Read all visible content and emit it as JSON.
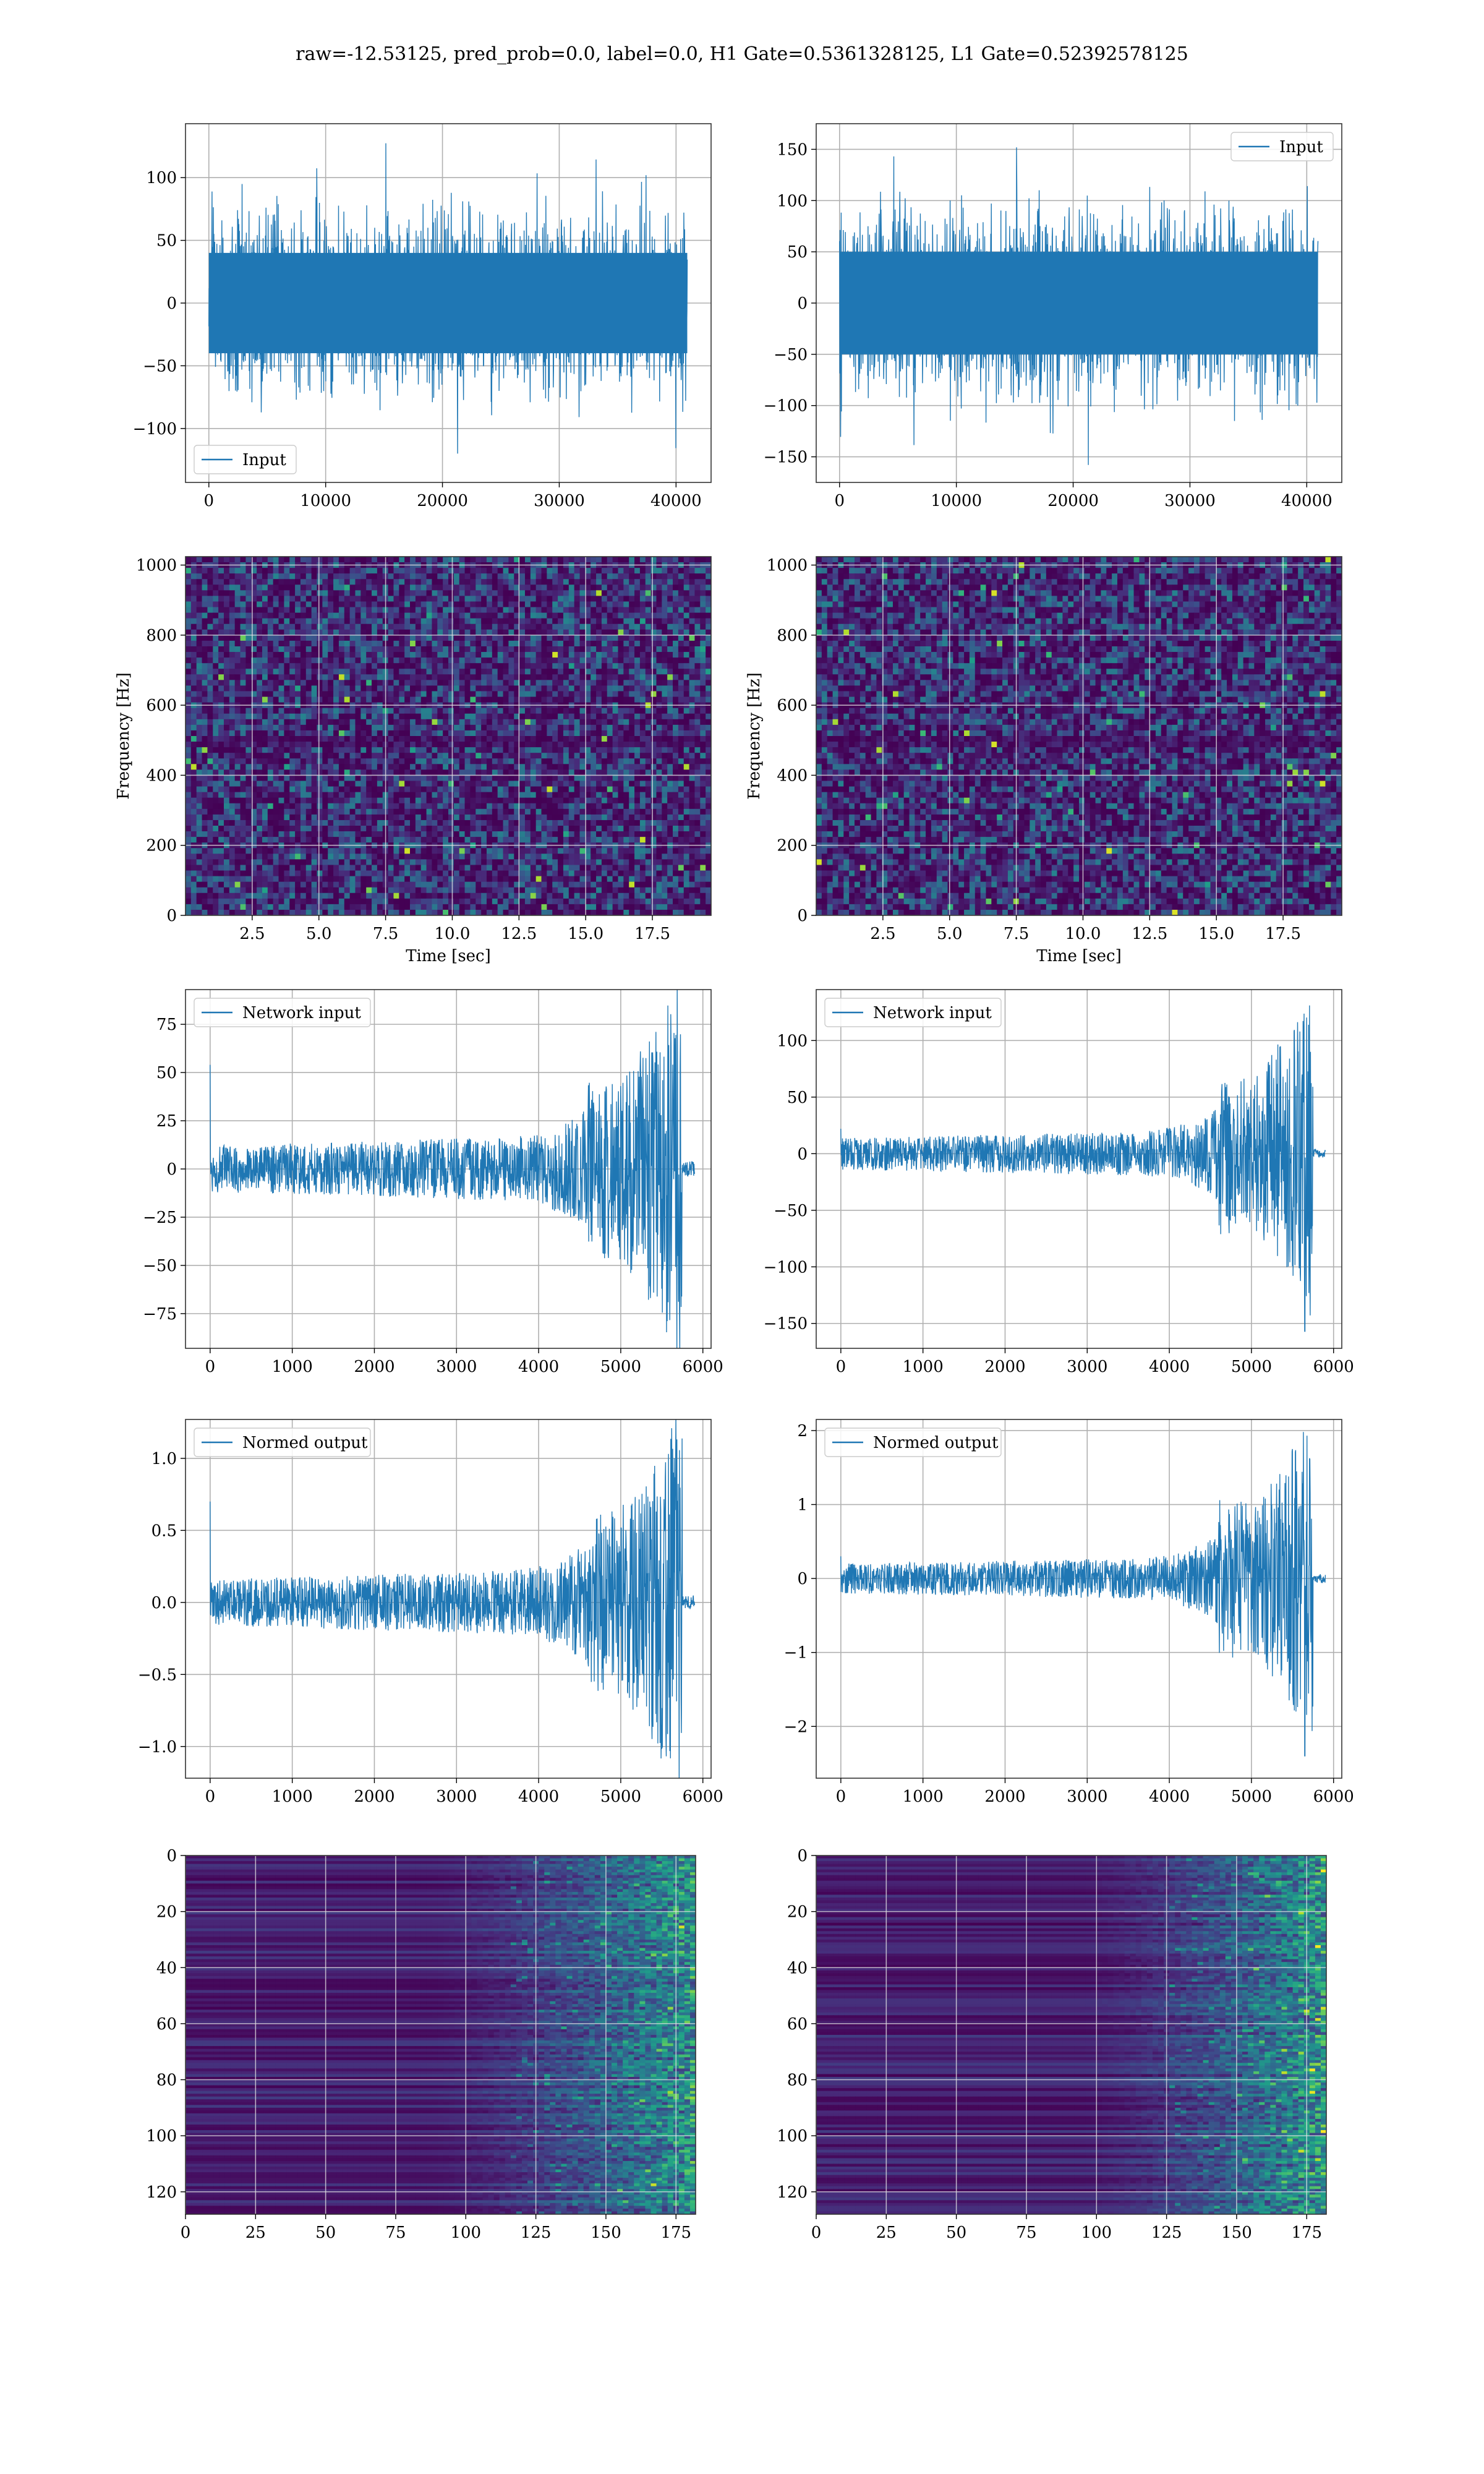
{
  "figure": {
    "title": "raw=-12.53125, pred_prob=0.0, label=0.0, H1 Gate=0.5361328125, L1 Gate=0.52392578125"
  },
  "colors": {
    "line": "#1f77b4",
    "grid": "#b0b0b0",
    "viridis": [
      "#440154",
      "#482878",
      "#3e4989",
      "#31688e",
      "#26828e",
      "#1f9e89",
      "#35b779",
      "#6ece58",
      "#b5de2b",
      "#fde725"
    ]
  },
  "chart_data": [
    {
      "id": "h1-input",
      "type": "line",
      "col": 0,
      "row": 0,
      "title": "",
      "xlabel": "",
      "ylabel": "",
      "series": [
        {
          "name": "Input"
        }
      ],
      "legend": "lower-left",
      "xlim": [
        -2000,
        43000
      ],
      "ylim": [
        -143,
        143
      ],
      "xticks": [
        0,
        10000,
        20000,
        30000,
        40000
      ],
      "yticks": [
        -100,
        -50,
        0,
        50,
        100
      ],
      "ticklabels_y": [
        "−100",
        "−50",
        "0",
        "50",
        "100"
      ],
      "grid": true,
      "signal": {
        "kind": "noise",
        "x_start": 0,
        "x_end": 40960,
        "n": 1800,
        "amp_core": 40,
        "amp_peak": 128,
        "extremes": [
          -120,
          130
        ]
      }
    },
    {
      "id": "l1-input",
      "type": "line",
      "col": 1,
      "row": 0,
      "title": "",
      "xlabel": "",
      "ylabel": "",
      "series": [
        {
          "name": "Input"
        }
      ],
      "legend": "upper-right",
      "xlim": [
        -2000,
        43000
      ],
      "ylim": [
        -175,
        175
      ],
      "xticks": [
        0,
        10000,
        20000,
        30000,
        40000
      ],
      "yticks": [
        -150,
        -100,
        -50,
        0,
        50,
        100,
        150
      ],
      "ticklabels_y": [
        "−150",
        "−100",
        "−50",
        "0",
        "50",
        "100",
        "150"
      ],
      "grid": true,
      "signal": {
        "kind": "noise",
        "x_start": 0,
        "x_end": 40960,
        "n": 1800,
        "amp_core": 50,
        "amp_peak": 155,
        "extremes": [
          -158,
          155
        ]
      }
    },
    {
      "id": "h1-spectrogram",
      "type": "heatmap",
      "col": 0,
      "row": 1,
      "title": "",
      "xlabel": "Time [sec]",
      "ylabel": "Frequency [Hz]",
      "xlim": [
        0,
        19.7
      ],
      "ylim": [
        0,
        1024
      ],
      "xticks": [
        2.5,
        5.0,
        7.5,
        10.0,
        12.5,
        15.0,
        17.5
      ],
      "ticklabels_x": [
        "2.5",
        "5.0",
        "7.5",
        "10.0",
        "12.5",
        "15.0",
        "17.5"
      ],
      "yticks": [
        0,
        200,
        400,
        600,
        800,
        1000
      ],
      "grid": true,
      "cells": {
        "nx": 96,
        "ny": 64,
        "dark_band_hz": 500,
        "seed": 11
      }
    },
    {
      "id": "l1-spectrogram",
      "type": "heatmap",
      "col": 1,
      "row": 1,
      "title": "",
      "xlabel": "Time [sec]",
      "ylabel": "Frequency [Hz]",
      "xlim": [
        0,
        19.7
      ],
      "ylim": [
        0,
        1024
      ],
      "xticks": [
        2.5,
        5.0,
        7.5,
        10.0,
        12.5,
        15.0,
        17.5
      ],
      "ticklabels_x": [
        "2.5",
        "5.0",
        "7.5",
        "10.0",
        "12.5",
        "15.0",
        "17.5"
      ],
      "yticks": [
        0,
        200,
        400,
        600,
        800,
        1000
      ],
      "grid": true,
      "cells": {
        "nx": 96,
        "ny": 64,
        "dark_band_hz": 500,
        "seed": 29
      }
    },
    {
      "id": "h1-network-input",
      "type": "line",
      "col": 0,
      "row": 2,
      "title": "",
      "xlabel": "",
      "ylabel": "",
      "series": [
        {
          "name": "Network input"
        }
      ],
      "legend": "upper-left",
      "xlim": [
        -300,
        6100
      ],
      "ylim": [
        -93,
        93
      ],
      "xticks": [
        0,
        1000,
        2000,
        3000,
        4000,
        5000,
        6000
      ],
      "yticks": [
        -75,
        -50,
        -25,
        0,
        25,
        50,
        75
      ],
      "ticklabels_y": [
        "−75",
        "−50",
        "−25",
        "0",
        "25",
        "50",
        "75"
      ],
      "grid": true,
      "signal": {
        "kind": "chirp",
        "x_start": 0,
        "x_end": 5900,
        "merger": 5750,
        "n": 1500,
        "base_amp": 12,
        "peak_amp": 85,
        "spike_start": 54,
        "tail_amp": 4
      }
    },
    {
      "id": "l1-network-input",
      "type": "line",
      "col": 1,
      "row": 2,
      "title": "",
      "xlabel": "",
      "ylabel": "",
      "series": [
        {
          "name": "Network input"
        }
      ],
      "legend": "upper-left",
      "xlim": [
        -300,
        6100
      ],
      "ylim": [
        -172,
        145
      ],
      "xticks": [
        0,
        1000,
        2000,
        3000,
        4000,
        5000,
        6000
      ],
      "yticks": [
        -150,
        -100,
        -50,
        0,
        50,
        100
      ],
      "ticklabels_y": [
        "−150",
        "−100",
        "−50",
        "0",
        "50",
        "100"
      ],
      "grid": true,
      "signal": {
        "kind": "chirp",
        "x_start": 0,
        "x_end": 5900,
        "merger": 5750,
        "n": 1500,
        "base_amp": 14,
        "peak_amp": 130,
        "spike_start": 22,
        "tail_amp": 4,
        "min_spike": -157
      }
    },
    {
      "id": "h1-normed-output",
      "type": "line",
      "col": 0,
      "row": 3,
      "title": "",
      "xlabel": "",
      "ylabel": "",
      "series": [
        {
          "name": "Normed output"
        }
      ],
      "legend": "upper-left",
      "xlim": [
        -300,
        6100
      ],
      "ylim": [
        -1.22,
        1.27
      ],
      "xticks": [
        0,
        1000,
        2000,
        3000,
        4000,
        5000,
        6000
      ],
      "yticks": [
        -1.0,
        -0.5,
        0.0,
        0.5,
        1.0
      ],
      "ticklabels_y": [
        "−1.0",
        "−0.5",
        "0.0",
        "0.5",
        "1.0"
      ],
      "grid": true,
      "signal": {
        "kind": "chirp",
        "x_start": 0,
        "x_end": 5900,
        "merger": 5750,
        "n": 1500,
        "base_amp": 0.16,
        "peak_amp": 1.15,
        "spike_start": 0.7,
        "tail_amp": 0.05
      }
    },
    {
      "id": "l1-normed-output",
      "type": "line",
      "col": 1,
      "row": 3,
      "title": "",
      "xlabel": "",
      "ylabel": "",
      "series": [
        {
          "name": "Normed output"
        }
      ],
      "legend": "upper-left",
      "xlim": [
        -300,
        6100
      ],
      "ylim": [
        -2.7,
        2.15
      ],
      "xticks": [
        0,
        1000,
        2000,
        3000,
        4000,
        5000,
        6000
      ],
      "yticks": [
        -2,
        -1,
        0,
        1,
        2
      ],
      "ticklabels_y": [
        "−2",
        "−1",
        "0",
        "1",
        "2"
      ],
      "grid": true,
      "signal": {
        "kind": "chirp",
        "x_start": 0,
        "x_end": 5900,
        "merger": 5750,
        "n": 1500,
        "base_amp": 0.2,
        "peak_amp": 1.95,
        "spike_start": 0.3,
        "tail_amp": 0.06,
        "min_spike": -2.4
      }
    },
    {
      "id": "h1-feature-map",
      "type": "heatmap",
      "col": 0,
      "row": 4,
      "title": "",
      "xlabel": "",
      "ylabel": "",
      "xlim": [
        0,
        182
      ],
      "ylim": [
        128,
        0
      ],
      "xticks": [
        0,
        25,
        50,
        75,
        100,
        125,
        150,
        175
      ],
      "yticks": [
        0,
        20,
        40,
        60,
        80,
        100,
        120
      ],
      "grid": true,
      "cells": {
        "nx": 91,
        "ny": 128,
        "activation_start": 115,
        "seed": 5
      }
    },
    {
      "id": "l1-feature-map",
      "type": "heatmap",
      "col": 1,
      "row": 4,
      "title": "",
      "xlabel": "",
      "ylabel": "",
      "xlim": [
        0,
        182
      ],
      "ylim": [
        128,
        0
      ],
      "xticks": [
        0,
        25,
        50,
        75,
        100,
        125,
        150,
        175
      ],
      "yticks": [
        0,
        20,
        40,
        60,
        80,
        100,
        120
      ],
      "grid": true,
      "cells": {
        "nx": 91,
        "ny": 128,
        "activation_start": 125,
        "seed": 17
      }
    }
  ]
}
